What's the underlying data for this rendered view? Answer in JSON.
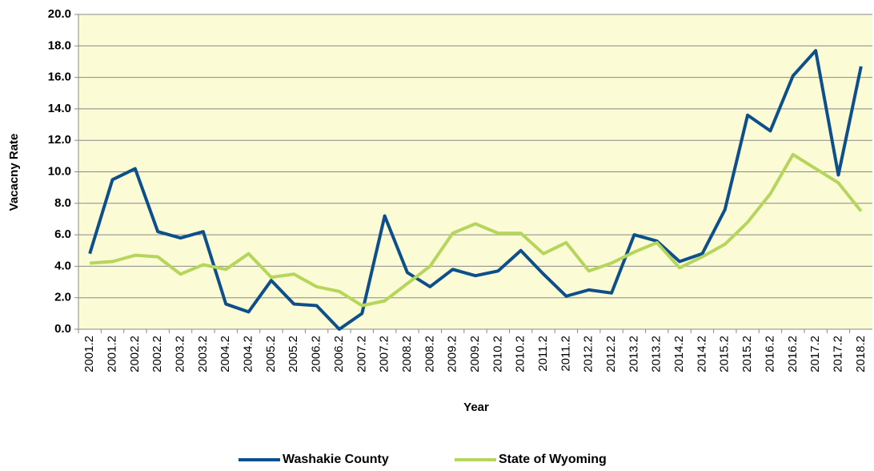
{
  "chart_data": {
    "type": "line",
    "y_axis_label": "Vacacny Rate",
    "x_axis_label": "Year",
    "categories": [
      "2001.2",
      "2001.2",
      "2002.2",
      "2002.2",
      "2003.2",
      "2003.2",
      "2004.2",
      "2004.2",
      "2005.2",
      "2005.2",
      "2006.2",
      "2006.2",
      "2007.2",
      "2007.2",
      "2008.2",
      "2008.2",
      "2009.2",
      "2009.2",
      "2010.2",
      "2010.2",
      "2011.2",
      "2011.2",
      "2012.2",
      "2012.2",
      "2013.2",
      "2013.2",
      "2014.2",
      "2014.2",
      "2015.2",
      "2015.2",
      "2016.2",
      "2016.2",
      "2017.2",
      "2017.2",
      "2018.2"
    ],
    "series": [
      {
        "name": "Washakie County",
        "color": "#0d4f8b",
        "values": [
          4.8,
          9.5,
          10.2,
          6.2,
          5.8,
          6.2,
          1.6,
          1.1,
          3.1,
          1.6,
          1.5,
          0.0,
          1.0,
          7.2,
          3.6,
          2.7,
          3.8,
          3.4,
          3.7,
          5.0,
          3.5,
          2.1,
          2.5,
          2.3,
          6.0,
          5.6,
          4.3,
          4.8,
          7.6,
          13.6,
          12.6,
          16.1,
          17.7,
          9.8,
          16.7
        ]
      },
      {
        "name": "State of Wyoming",
        "color": "#b5d65a",
        "values": [
          4.2,
          4.3,
          4.7,
          4.6,
          3.5,
          4.1,
          3.8,
          4.8,
          3.3,
          3.5,
          2.7,
          2.4,
          1.5,
          1.8,
          2.9,
          4.0,
          6.1,
          6.7,
          6.1,
          6.1,
          4.8,
          5.5,
          3.7,
          4.2,
          4.9,
          5.5,
          3.9,
          4.6,
          5.4,
          6.8,
          8.6,
          11.1,
          10.2,
          9.3,
          7.5
        ]
      }
    ],
    "ylim": [
      0,
      20
    ],
    "yticks": [
      {
        "value": 0,
        "label": "0.0"
      },
      {
        "value": 2,
        "label": "2.0"
      },
      {
        "value": 4,
        "label": "4.0"
      },
      {
        "value": 6,
        "label": "6.0"
      },
      {
        "value": 8,
        "label": "8.0"
      },
      {
        "value": 10,
        "label": "10.0"
      },
      {
        "value": 12,
        "label": "12.0"
      },
      {
        "value": 14,
        "label": "14.0"
      },
      {
        "value": 16,
        "label": "16.0"
      },
      {
        "value": 18,
        "label": "18.0"
      },
      {
        "value": 20,
        "label": "20.0"
      }
    ],
    "grid": true,
    "plot_background": "#fbfbd6",
    "legend": "bottom"
  }
}
